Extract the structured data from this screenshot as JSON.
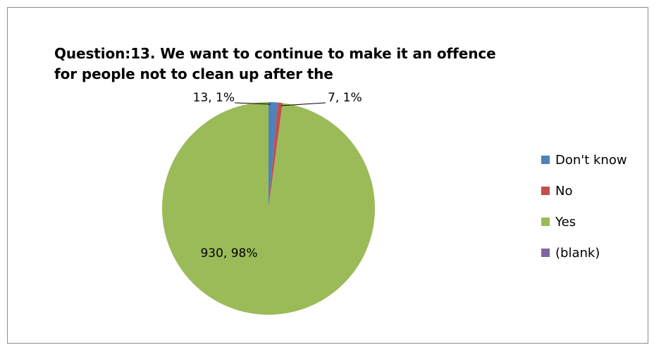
{
  "chart_data": {
    "type": "pie",
    "title": "Question:13.  We want to continue to make it an offence for people not to clean up after the",
    "title_lines": [
      "Question:13.  We want to continue to make it an offence",
      "for people not to clean up after the"
    ],
    "slices": [
      {
        "label": "Don't know",
        "value": 13,
        "percent": "1%",
        "color": "#4f81bd",
        "data_label": "13, 1%"
      },
      {
        "label": "No",
        "value": 7,
        "percent": "1%",
        "color": "#c0504d",
        "data_label": "7, 1%"
      },
      {
        "label": "Yes",
        "value": 930,
        "percent": "98%",
        "color": "#9bbb59",
        "data_label": "930, 98%"
      },
      {
        "label": "(blank)",
        "value": 0,
        "percent": "0%",
        "color": "#8064a2",
        "data_label": ""
      }
    ],
    "legend_position": "right"
  }
}
